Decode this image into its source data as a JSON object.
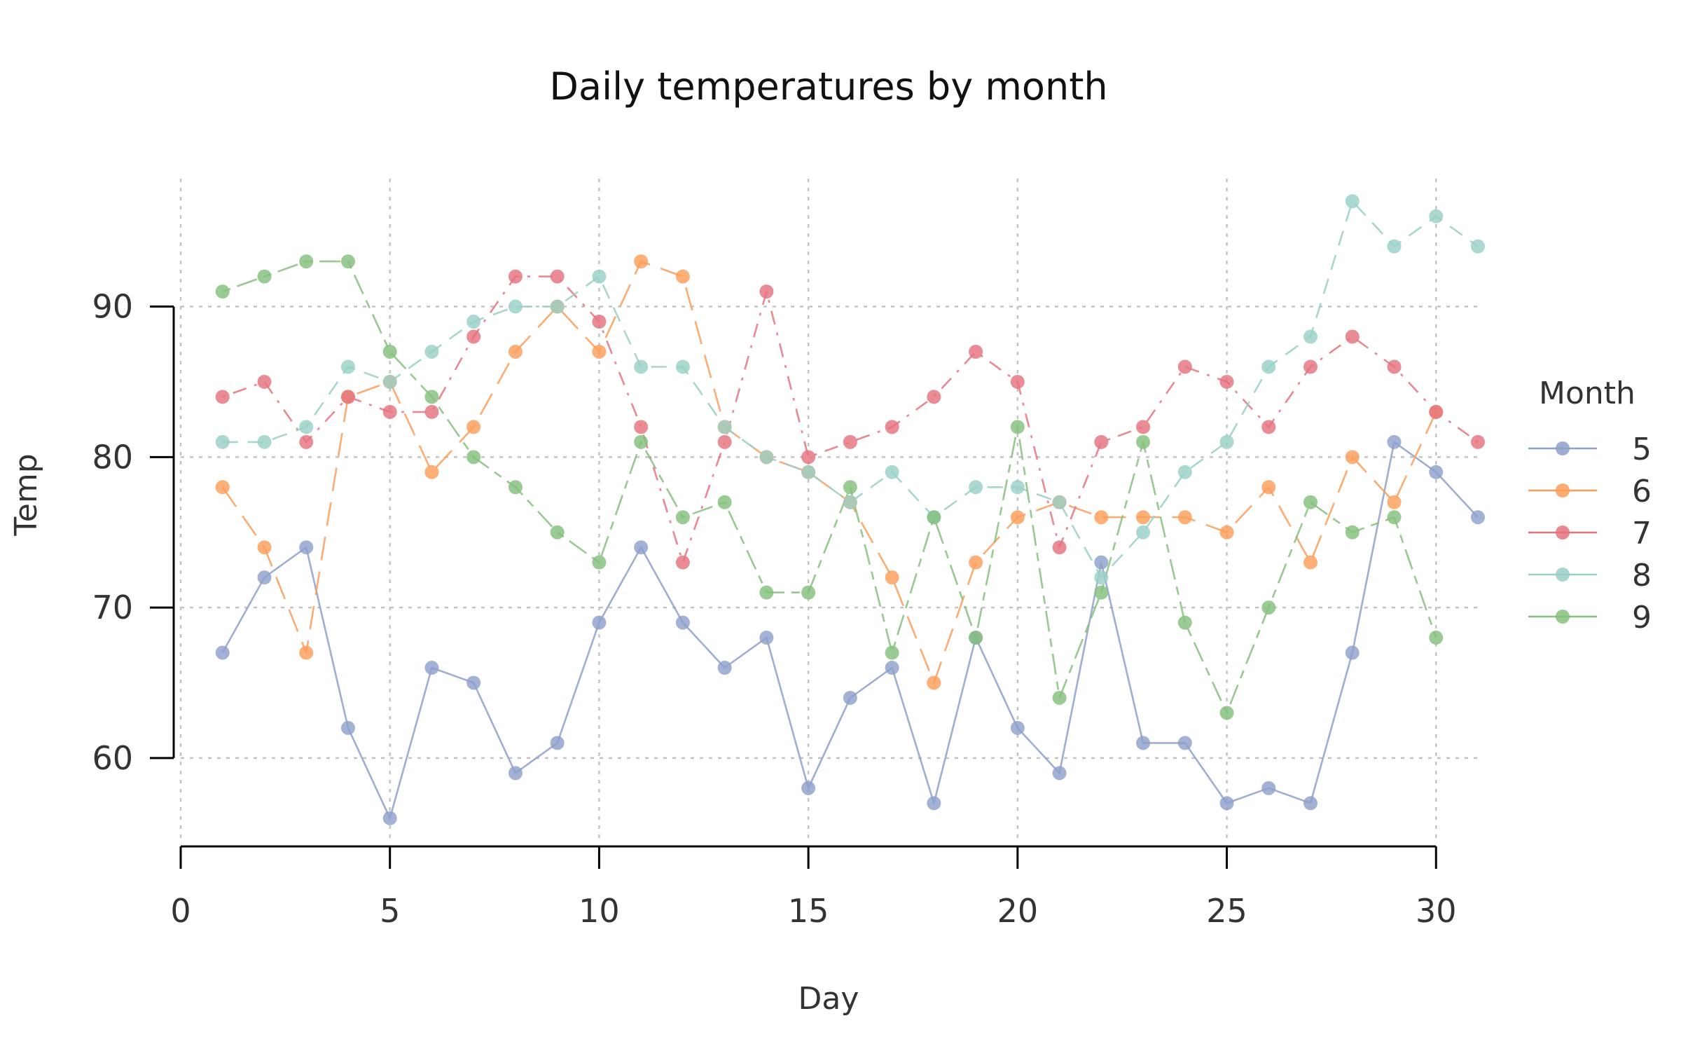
{
  "chart_data": {
    "type": "line",
    "title": "Daily temperatures by month",
    "xlabel": "Day",
    "ylabel": "Temp",
    "xlim": [
      0,
      31
    ],
    "ylim": [
      54.5,
      98.5
    ],
    "xticks": [
      0,
      5,
      10,
      15,
      20,
      25,
      30
    ],
    "yticks": [
      60,
      70,
      80,
      90
    ],
    "grid": true,
    "legend": {
      "title": "Month",
      "position": "right"
    },
    "series": [
      {
        "name": "5",
        "color": "#8da0cb",
        "dash": "solid",
        "x": [
          1,
          2,
          3,
          4,
          5,
          6,
          7,
          8,
          9,
          10,
          11,
          12,
          13,
          14,
          15,
          16,
          17,
          18,
          19,
          20,
          21,
          22,
          23,
          24,
          25,
          26,
          27,
          28,
          29,
          30,
          31
        ],
        "values": [
          67,
          72,
          74,
          62,
          56,
          66,
          65,
          59,
          61,
          69,
          74,
          69,
          66,
          68,
          58,
          64,
          66,
          57,
          68,
          62,
          59,
          73,
          61,
          61,
          57,
          58,
          57,
          67,
          81,
          79,
          76
        ]
      },
      {
        "name": "6",
        "color": "#fc9d5a",
        "dash": "longdash",
        "x": [
          1,
          2,
          3,
          4,
          5,
          6,
          7,
          8,
          9,
          10,
          11,
          12,
          13,
          14,
          15,
          16,
          17,
          18,
          19,
          20,
          21,
          22,
          23,
          24,
          25,
          26,
          27,
          28,
          29,
          30
        ],
        "values": [
          78,
          74,
          67,
          84,
          85,
          79,
          82,
          87,
          90,
          87,
          93,
          92,
          82,
          80,
          79,
          77,
          72,
          65,
          73,
          76,
          77,
          76,
          76,
          76,
          75,
          78,
          73,
          80,
          77,
          83
        ]
      },
      {
        "name": "7",
        "color": "#e5737f",
        "dash": "dotdash",
        "x": [
          1,
          2,
          3,
          4,
          5,
          6,
          7,
          8,
          9,
          10,
          11,
          12,
          13,
          14,
          15,
          16,
          17,
          18,
          19,
          20,
          21,
          22,
          23,
          24,
          25,
          26,
          27,
          28,
          29,
          30,
          31
        ],
        "values": [
          84,
          85,
          81,
          84,
          83,
          83,
          88,
          92,
          92,
          89,
          82,
          73,
          81,
          91,
          80,
          81,
          82,
          84,
          87,
          85,
          74,
          81,
          82,
          86,
          85,
          82,
          86,
          88,
          86,
          83,
          81
        ]
      },
      {
        "name": "8",
        "color": "#99cfc6",
        "dash": "dashed",
        "x": [
          1,
          2,
          3,
          4,
          5,
          6,
          7,
          8,
          9,
          10,
          11,
          12,
          13,
          14,
          15,
          16,
          17,
          18,
          19,
          20,
          21,
          22,
          23,
          24,
          25,
          26,
          27,
          28,
          29,
          30,
          31
        ],
        "values": [
          81,
          81,
          82,
          86,
          85,
          87,
          89,
          90,
          90,
          92,
          86,
          86,
          82,
          80,
          79,
          77,
          79,
          76,
          78,
          78,
          77,
          72,
          75,
          79,
          81,
          86,
          88,
          97,
          94,
          96,
          94
        ]
      },
      {
        "name": "9",
        "color": "#85bf7c",
        "dash": "twodash",
        "x": [
          1,
          2,
          3,
          4,
          5,
          6,
          7,
          8,
          9,
          10,
          11,
          12,
          13,
          14,
          15,
          16,
          17,
          18,
          19,
          20,
          21,
          22,
          23,
          24,
          25,
          26,
          27,
          28,
          29,
          30
        ],
        "values": [
          91,
          92,
          93,
          93,
          87,
          84,
          80,
          78,
          75,
          73,
          81,
          76,
          77,
          71,
          71,
          78,
          67,
          76,
          68,
          82,
          64,
          71,
          81,
          69,
          63,
          70,
          77,
          75,
          76,
          68
        ]
      }
    ]
  }
}
